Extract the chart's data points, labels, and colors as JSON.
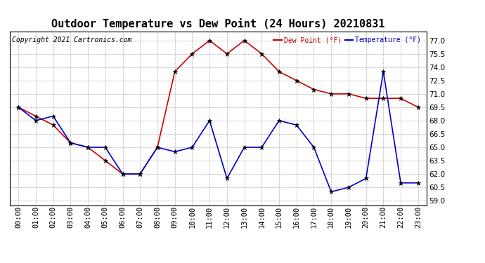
{
  "title": "Outdoor Temperature vs Dew Point (24 Hours) 20210831",
  "copyright": "Copyright 2021 Cartronics.com",
  "legend_dew": "Dew Point (°F)",
  "legend_temp": "Temperature (°F)",
  "x_labels": [
    "00:00",
    "01:00",
    "02:00",
    "03:00",
    "04:00",
    "05:00",
    "06:00",
    "07:00",
    "08:00",
    "09:00",
    "10:00",
    "11:00",
    "12:00",
    "13:00",
    "14:00",
    "15:00",
    "16:00",
    "17:00",
    "18:00",
    "19:00",
    "20:00",
    "21:00",
    "22:00",
    "23:00"
  ],
  "temperature": [
    69.5,
    68.0,
    68.5,
    65.5,
    65.0,
    65.0,
    62.0,
    62.0,
    65.0,
    64.5,
    65.0,
    68.0,
    61.5,
    65.0,
    65.0,
    68.0,
    67.5,
    65.0,
    60.0,
    60.5,
    61.5,
    73.5,
    61.0,
    61.0
  ],
  "dew_point": [
    69.5,
    68.5,
    67.5,
    65.5,
    65.0,
    63.5,
    62.0,
    62.0,
    65.0,
    73.5,
    75.5,
    77.0,
    75.5,
    77.0,
    75.5,
    73.5,
    72.5,
    71.5,
    71.0,
    71.0,
    70.5,
    70.5,
    70.5,
    69.5
  ],
  "ylim": [
    58.5,
    78.0
  ],
  "yticks": [
    59.0,
    60.5,
    62.0,
    63.5,
    65.0,
    66.5,
    68.0,
    69.5,
    71.0,
    72.5,
    74.0,
    75.5,
    77.0
  ],
  "temp_color": "#0000cc",
  "dew_color": "#cc0000",
  "grid_color": "#aaaaaa",
  "bg_color": "#ffffff",
  "title_color": "#000000",
  "copyright_color": "#000000",
  "legend_dew_color": "#cc0000",
  "legend_temp_color": "#0000cc",
  "title_fontsize": 11,
  "tick_fontsize": 7.5,
  "copyright_fontsize": 7,
  "legend_fontsize": 7
}
